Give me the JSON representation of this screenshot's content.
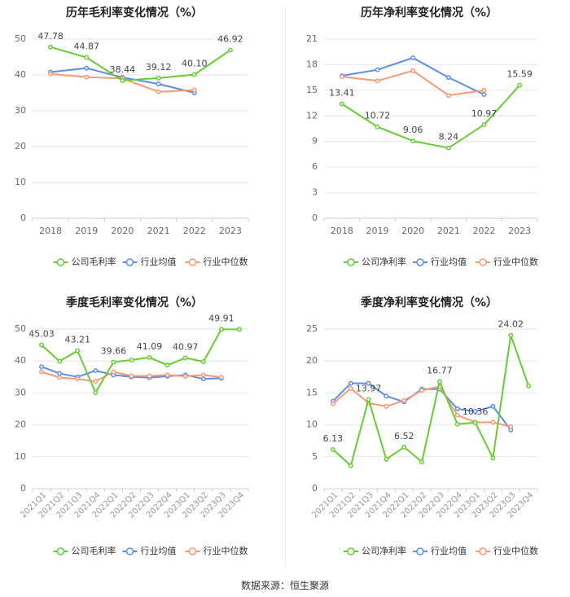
{
  "colors": {
    "company": "#66cc33",
    "industry_avg": "#5b8ee6",
    "industry_median": "#f59a76",
    "axis_text": "#666666",
    "grid": "#e6e6e6",
    "title": "#222222"
  },
  "source": "数据来源：恒生聚源",
  "chart_data": [
    {
      "type": "line",
      "title": "历年毛利率变化情况（%）",
      "categories": [
        "2018",
        "2019",
        "2020",
        "2021",
        "2022",
        "2023"
      ],
      "ylim": [
        0,
        50
      ],
      "yticks": [
        0,
        10,
        20,
        30,
        40,
        50
      ],
      "rotate_x": false,
      "series": [
        {
          "name": "公司毛利率",
          "key": "company",
          "values": [
            47.78,
            44.87,
            38.44,
            39.12,
            40.1,
            46.92
          ],
          "labels": [
            "47.78",
            "44.87",
            "38.44",
            "39.12",
            "40.10",
            "46.92"
          ]
        },
        {
          "name": "行业均值",
          "key": "industry_avg",
          "values": [
            40.8,
            41.9,
            39.3,
            37.5,
            35.0,
            null
          ]
        },
        {
          "name": "行业中位数",
          "key": "industry_median",
          "values": [
            40.3,
            39.4,
            39.0,
            35.3,
            35.8,
            null
          ]
        }
      ]
    },
    {
      "type": "line",
      "title": "历年净利率变化情况（%）",
      "categories": [
        "2018",
        "2019",
        "2020",
        "2021",
        "2022",
        "2023"
      ],
      "ylim": [
        0,
        21
      ],
      "yticks": [
        0,
        3,
        6,
        9,
        12,
        15,
        18,
        21
      ],
      "rotate_x": false,
      "series": [
        {
          "name": "公司净利率",
          "key": "company",
          "values": [
            13.41,
            10.72,
            9.06,
            8.24,
            10.97,
            15.59
          ],
          "labels": [
            "13.41",
            "10.72",
            "9.06",
            "8.24",
            "10.97",
            "15.59"
          ]
        },
        {
          "name": "行业均值",
          "key": "industry_avg",
          "values": [
            16.7,
            17.4,
            18.8,
            16.5,
            14.5,
            null
          ]
        },
        {
          "name": "行业中位数",
          "key": "industry_median",
          "values": [
            16.6,
            16.1,
            17.3,
            14.4,
            15.0,
            null
          ]
        }
      ]
    },
    {
      "type": "line",
      "title": "季度毛利率变化情况（%）",
      "categories": [
        "2021Q1",
        "2021Q2",
        "2021Q3",
        "2021Q4",
        "2022Q1",
        "2022Q2",
        "2022Q3",
        "2022Q4",
        "2023Q1",
        "2023Q2",
        "2023Q3",
        "2023Q4"
      ],
      "ylim": [
        0,
        50
      ],
      "yticks": [
        0,
        10,
        20,
        30,
        40,
        50
      ],
      "rotate_x": true,
      "series": [
        {
          "name": "公司毛利率",
          "key": "company",
          "values": [
            45.03,
            39.9,
            43.21,
            30.1,
            39.66,
            40.3,
            41.09,
            38.7,
            40.97,
            39.8,
            49.91,
            49.9
          ],
          "labels": [
            "45.03",
            null,
            "43.21",
            null,
            "39.66",
            null,
            "41.09",
            null,
            "40.97",
            null,
            "49.91",
            null
          ]
        },
        {
          "name": "行业均值",
          "key": "industry_avg",
          "values": [
            38.2,
            36.1,
            35.0,
            37.0,
            35.6,
            35.0,
            34.8,
            35.2,
            35.6,
            34.4,
            34.6,
            null
          ]
        },
        {
          "name": "行业中位数",
          "key": "industry_median",
          "values": [
            36.6,
            34.8,
            34.4,
            33.6,
            36.6,
            35.3,
            35.3,
            35.6,
            35.2,
            35.6,
            34.9,
            null
          ]
        }
      ]
    },
    {
      "type": "line",
      "title": "季度净利率变化情况（%）",
      "categories": [
        "2021Q1",
        "2021Q2",
        "2021Q3",
        "2021Q4",
        "2022Q1",
        "2022Q2",
        "2022Q3",
        "2022Q4",
        "2023Q1",
        "2023Q2",
        "2023Q3",
        "2023Q4"
      ],
      "ylim": [
        0,
        25
      ],
      "yticks": [
        0,
        5,
        10,
        15,
        20,
        25
      ],
      "rotate_x": true,
      "series": [
        {
          "name": "公司净利率",
          "key": "company",
          "values": [
            6.13,
            3.6,
            13.97,
            4.6,
            6.52,
            4.2,
            16.77,
            10.1,
            10.36,
            4.8,
            24.02,
            16.1
          ],
          "labels": [
            "6.13",
            null,
            "13.97",
            null,
            "6.52",
            null,
            "16.77",
            null,
            "10.36",
            null,
            "24.02",
            null
          ]
        },
        {
          "name": "行业均值",
          "key": "industry_avg",
          "values": [
            13.7,
            16.5,
            16.5,
            14.5,
            13.6,
            15.6,
            15.6,
            12.5,
            12.1,
            12.9,
            9.2,
            null
          ]
        },
        {
          "name": "行业中位数",
          "key": "industry_median",
          "values": [
            13.3,
            15.7,
            13.4,
            12.9,
            13.8,
            15.4,
            16.0,
            11.5,
            10.4,
            10.4,
            9.7,
            null
          ]
        }
      ]
    }
  ]
}
